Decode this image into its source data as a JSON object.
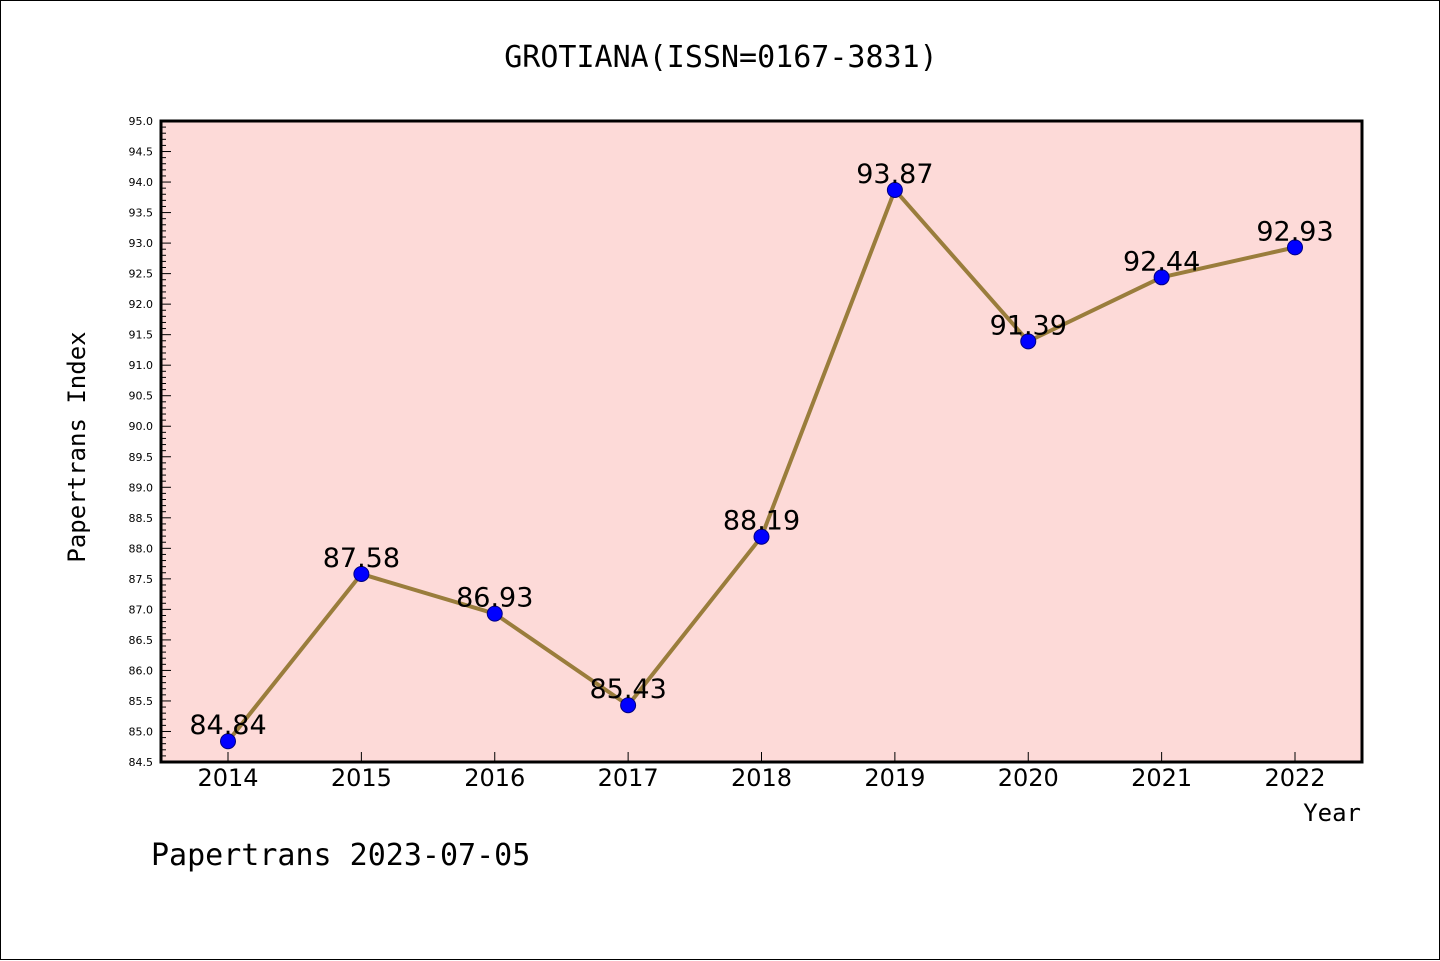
{
  "chart_data": {
    "type": "line",
    "title": "GROTIANA(ISSN=0167-3831)",
    "xlabel": "Year",
    "ylabel": "Papertrans Index",
    "footer": "Papertrans 2023-07-05",
    "categories": [
      "2014",
      "2015",
      "2016",
      "2017",
      "2018",
      "2019",
      "2020",
      "2021",
      "2022"
    ],
    "values": [
      84.84,
      87.58,
      86.93,
      85.43,
      88.19,
      93.87,
      91.39,
      92.44,
      92.93
    ],
    "data_labels": [
      "84.84",
      "87.58",
      "86.93",
      "85.43",
      "88.19",
      "93.87",
      "91.39",
      "92.44",
      "92.93"
    ],
    "ylim": [
      84.5,
      95.0
    ],
    "yticks": [
      "84.5",
      "85.0",
      "85.5",
      "86.0",
      "86.5",
      "87.0",
      "87.5",
      "88.0",
      "88.5",
      "89.0",
      "89.5",
      "90.0",
      "90.5",
      "91.0",
      "91.5",
      "92.0",
      "92.5",
      "93.0",
      "93.5",
      "94.0",
      "94.5",
      "95.0"
    ],
    "grid": false,
    "colors": {
      "plot_background": "#fddad8",
      "line": "#9a7d3c",
      "marker": "#0000ff",
      "marker_edge": "#000080"
    }
  }
}
